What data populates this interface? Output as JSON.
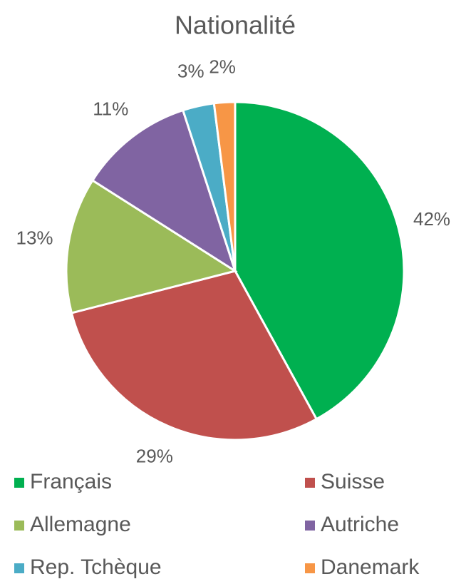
{
  "chart_data": {
    "type": "pie",
    "title": "Nationalité",
    "categories": [
      "Français",
      "Suisse",
      "Allemagne",
      "Autriche",
      "Rep. Tchèque",
      "Danemark"
    ],
    "values": [
      42,
      29,
      13,
      11,
      3,
      2
    ],
    "value_labels": [
      "42%",
      "29%",
      "13%",
      "11%",
      "3%",
      "2%"
    ],
    "colors": [
      "#00b050",
      "#c0504d",
      "#9bbb59",
      "#8064a2",
      "#4bacc6",
      "#f79646"
    ],
    "legend": "bottom"
  }
}
